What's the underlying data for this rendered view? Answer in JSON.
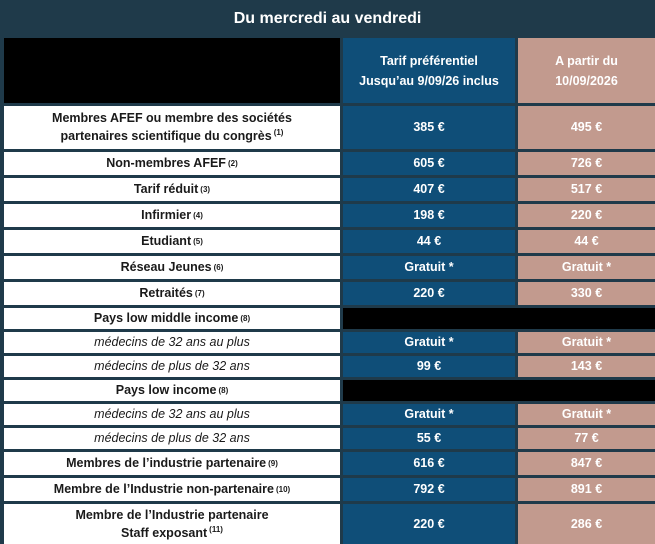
{
  "title": "Du mercredi au vendredi",
  "headers": {
    "col1_line1": "Tarif préférentiel",
    "col1_line2": "Jusqu’au 9/09/26 inclus",
    "col2_line1": "A partir du",
    "col2_line2": "10/09/2026"
  },
  "rows": [
    {
      "label_line1": "Membres AFEF ou membre des sociétés",
      "label_line2": "partenaires scientifique du congrès",
      "note": "(1)",
      "early": "385 €",
      "late": "495 €"
    },
    {
      "label": "Non-membres AFEF",
      "note": "(2)",
      "early": "605 €",
      "late": "726 €"
    },
    {
      "label": "Tarif réduit",
      "note": "(3)",
      "early": "407 €",
      "late": "517 €"
    },
    {
      "label": "Infirmier",
      "note": "(4)",
      "early": "198 €",
      "late": "220 €"
    },
    {
      "label": "Etudiant",
      "note": "(5)",
      "early": "44 €",
      "late": "44 €"
    },
    {
      "label": "Réseau Jeunes",
      "note": "(6)",
      "early": "Gratuit  *",
      "late": "Gratuit  *"
    },
    {
      "label": "Retraités",
      "note": "(7)",
      "early": "220 €",
      "late": "330 €"
    }
  ],
  "low_middle": {
    "label": "Pays low middle income",
    "note": "(8)",
    "sub1": "médecins de 32 ans au plus",
    "sub2": "médecins de plus de 32 ans",
    "early1": "Gratuit  *",
    "early2": "99 €",
    "late1": "Gratuit  *",
    "late2": "143 €"
  },
  "low": {
    "label": "Pays low income",
    "note": "(8)",
    "sub1": "médecins de 32 ans au plus",
    "sub2": "médecins de plus de 32 ans",
    "early1": "Gratuit  *",
    "early2": "55 €",
    "late1": "Gratuit  *",
    "late2": "77 €"
  },
  "industry": [
    {
      "label": "Membres de l’industrie partenaire",
      "note": "(9)",
      "early": "616 €",
      "late": "847 €"
    },
    {
      "label": "Membre de l’Industrie non-partenaire",
      "note": "(10)",
      "early": "792 €",
      "late": "891 €"
    }
  ],
  "staff": {
    "label_line1": "Membre de l’Industrie partenaire",
    "label_line2": "Staff exposant",
    "note": "(11)",
    "early": "220 €",
    "late": "286 €"
  },
  "colors": {
    "background": "#1f3a4a",
    "early_column": "#0f4e78",
    "late_column": "#c29a8e",
    "header_blank": "#000000"
  }
}
